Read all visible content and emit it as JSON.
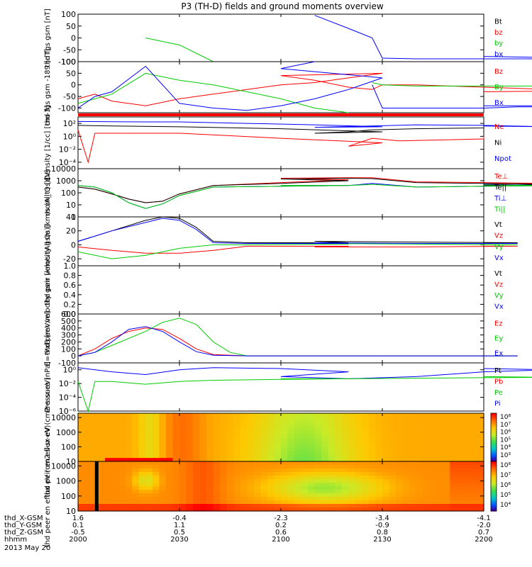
{
  "title": "P3 (TH-D) fields and ground moments overview",
  "colors": {
    "black": "#000000",
    "red": "#ff0000",
    "green": "#00cc00",
    "blue": "#0000ff",
    "lime": "#00ff00"
  },
  "x_axis": {
    "rows": [
      {
        "label": "thd_X-GSM",
        "values": [
          "1.6",
          "-0.4",
          "-2.3",
          "-3.4",
          "-4.1"
        ]
      },
      {
        "label": "thd_Y-GSM",
        "values": [
          "0.1",
          "1.1",
          "0.2",
          "-0.9",
          "-2.0"
        ]
      },
      {
        "label": "thd_Z-GSM",
        "values": [
          "-0.5",
          "0.5",
          "0.6",
          "0.8",
          "0.7"
        ]
      },
      {
        "label": "hhmm",
        "values": [
          "2000",
          "2030",
          "2100",
          "2130",
          "2200"
        ]
      }
    ],
    "date": "2013 May 20"
  },
  "chart_data": [
    {
      "type": "line",
      "ylabel": "thd fgs gsm [nT]",
      "ylim": [
        -100,
        100
      ],
      "y_ticks": [
        "100",
        "50",
        "0",
        "-50",
        "-100"
      ],
      "legend": [
        "Bt",
        "bz",
        "by",
        "bx"
      ],
      "series": [
        {
          "name": "by",
          "x": [
            2000,
            2010,
            2020,
            2030,
            2040,
            2050,
            2060
          ],
          "y": [
            null,
            null,
            0,
            -30,
            -100,
            null,
            null
          ]
        },
        {
          "name": "bx",
          "x": [
            2000,
            2010,
            2020,
            2030,
            2040,
            2050,
            2060,
            2070,
            2080,
            2090,
            2100,
            2110,
            2120,
            2127,
            2130,
            2140,
            2150,
            2160,
            2170,
            2180,
            2190,
            2200
          ],
          "y": [
            null,
            null,
            null,
            null,
            null,
            null,
            null,
            null,
            null,
            null,
            null,
            95,
            40,
            0,
            -85,
            -88,
            -88,
            -88,
            -88,
            -88,
            -85,
            -78
          ]
        }
      ]
    },
    {
      "type": "line",
      "ylabel": "thd fgs gsm -189 [nT]",
      "ylim": [
        -120,
        100
      ],
      "y_ticks": [
        "100",
        "50",
        "0",
        "-50",
        "-100"
      ],
      "legend": [
        "Bz",
        "By",
        "Bx"
      ],
      "series": [
        {
          "name": "Bz",
          "x": [
            2000,
            2005,
            2010,
            2020,
            2030,
            2040,
            2050,
            2060,
            2070,
            2080,
            2090,
            2100,
            2110,
            2120,
            2127,
            2130,
            2140,
            2150,
            2160,
            2170,
            2180,
            2190,
            2200
          ],
          "y": [
            -60,
            -40,
            -70,
            -90,
            -60,
            -40,
            -20,
            0,
            10,
            30,
            50,
            40,
            20,
            -10,
            -20,
            0,
            0,
            -5,
            -10,
            -15,
            -20,
            -25,
            -30
          ]
        },
        {
          "name": "By",
          "x": [
            2000,
            2005,
            2010,
            2020,
            2030,
            2040,
            2050,
            2060,
            2070,
            2080,
            2090,
            2100,
            2110,
            2120,
            2127,
            2130,
            2140,
            2150,
            2160,
            2170,
            2180,
            2190,
            2200
          ],
          "y": [
            -80,
            -60,
            -40,
            50,
            20,
            0,
            -30,
            -60,
            -100,
            -120,
            null,
            null,
            null,
            null,
            10,
            0,
            -5,
            -5,
            -5,
            -5,
            -5,
            -5,
            -5
          ]
        },
        {
          "name": "Bx",
          "x": [
            2000,
            2005,
            2010,
            2020,
            2030,
            2040,
            2050,
            2060,
            2070,
            2080,
            2090,
            2100,
            2110,
            2120,
            2127,
            2130,
            2140,
            2150,
            2160,
            2170,
            2180,
            2190,
            2200
          ],
          "y": [
            -100,
            -50,
            -30,
            80,
            -80,
            -100,
            -110,
            -90,
            -60,
            -20,
            30,
            70,
            100,
            null,
            0,
            -100,
            -100,
            -100,
            -100,
            -95,
            -95,
            -90,
            -90
          ]
        }
      ]
    },
    {
      "type": "line",
      "ylabel": "Density [1/cc] [cm-3]",
      "y_scale": "log",
      "ylim": [
        1e-05,
        1000
      ],
      "y_ticks": [
        "10²",
        "10⁰",
        "10⁻²",
        "10⁻⁴"
      ],
      "legend": [
        "Ne",
        "Ni",
        "Npot"
      ],
      "series": [
        {
          "name": "Ne",
          "x": [
            2000,
            2003,
            2005,
            2010,
            2030,
            2060,
            2090,
            2120,
            2127,
            2135,
            2160,
            2200
          ],
          "y": [
            10,
            0.0001,
            3,
            3,
            3,
            0.5,
            0.1,
            0.03,
            0.5,
            0.2,
            0.4,
            1
          ]
        },
        {
          "name": "Ni",
          "x": [
            2000,
            2010,
            2030,
            2060,
            2090,
            2110,
            2120,
            2127,
            2140,
            2160,
            2200
          ],
          "y": [
            50,
            40,
            30,
            15,
            5,
            3,
            5,
            10,
            15,
            20,
            25
          ]
        },
        {
          "name": "Npot",
          "x": [
            2000,
            2010,
            2020,
            2030,
            2050,
            2070,
            2090,
            2110,
            2127,
            2140,
            2160,
            2180,
            2200
          ],
          "y": [
            200,
            180,
            170,
            170,
            100,
            60,
            30,
            25,
            40,
            60,
            50,
            30,
            40
          ]
        }
      ]
    },
    {
      "type": "line",
      "ylabel": "mom_t3 [eV]",
      "y_scale": "log",
      "ylim": [
        1,
        10000
      ],
      "y_ticks": [
        "10000",
        "1000",
        "100",
        "10",
        "1"
      ],
      "legend": [
        "Te⊥",
        "Te||",
        "Ti⊥",
        "Ti||"
      ],
      "series": [
        {
          "name": "Te⊥",
          "x": [
            2000,
            2005,
            2010,
            2015,
            2020,
            2025,
            2030,
            2040,
            2060,
            2080,
            2100,
            2120,
            2127,
            2140,
            2160,
            2180,
            2200
          ],
          "y": [
            300,
            200,
            80,
            30,
            15,
            20,
            80,
            400,
            700,
            1200,
            1600,
            1800,
            1800,
            800,
            700,
            600,
            500
          ]
        },
        {
          "name": "Te||",
          "x": [
            2000,
            2005,
            2010,
            2015,
            2020,
            2025,
            2030,
            2040,
            2060,
            2080,
            2100,
            2120,
            2127,
            2140,
            2160,
            2180,
            2200
          ],
          "y": [
            300,
            200,
            80,
            30,
            15,
            20,
            80,
            400,
            600,
            1000,
            1400,
            1600,
            1500,
            700,
            600,
            500,
            400
          ]
        },
        {
          "name": "Ti⊥",
          "x": [
            2000,
            2005,
            2010,
            2015,
            2020,
            2025,
            2030,
            2040,
            2060,
            2080,
            2100,
            2120,
            2127,
            2140,
            2160,
            2180,
            2200
          ],
          "y": [
            400,
            300,
            100,
            15,
            5,
            12,
            60,
            300,
            350,
            400,
            400,
            400,
            600,
            300,
            350,
            400,
            500
          ]
        },
        {
          "name": "Ti||",
          "x": [
            2000,
            2005,
            2010,
            2015,
            2020,
            2025,
            2030,
            2040,
            2060,
            2080,
            2100,
            2120,
            2127,
            2140,
            2160,
            2180,
            2200
          ],
          "y": [
            400,
            300,
            100,
            15,
            5,
            12,
            60,
            300,
            350,
            400,
            400,
            400,
            500,
            300,
            350,
            400,
            450
          ]
        }
      ]
    },
    {
      "type": "line",
      "ylabel": "thd peir velocity gsm [km/s (All Qs)]",
      "ylim": [
        -30,
        40
      ],
      "y_ticks": [
        "40",
        "20",
        "0",
        "-20"
      ],
      "legend": [
        "Vt",
        "Vz",
        "Vy",
        "Vx"
      ],
      "series": [
        {
          "name": "Vt",
          "x": [
            2000,
            2010,
            2020,
            2025,
            2030,
            2035,
            2040,
            2050,
            2080,
            2110,
            2140,
            2170,
            2200
          ],
          "y": [
            5,
            20,
            35,
            40,
            38,
            25,
            5,
            3,
            3,
            5,
            4,
            3,
            3
          ]
        },
        {
          "name": "Vz",
          "x": [
            2000,
            2010,
            2020,
            2030,
            2040,
            2050,
            2080,
            2110,
            2140,
            2170,
            2200
          ],
          "y": [
            -3,
            -8,
            -12,
            -12,
            -8,
            -2,
            -2,
            -3,
            -3,
            -2,
            -2
          ]
        },
        {
          "name": "Vy",
          "x": [
            2000,
            2010,
            2020,
            2030,
            2040,
            2050,
            2080,
            2110,
            2140,
            2170,
            2200
          ],
          "y": [
            -10,
            -20,
            -15,
            -5,
            0,
            0,
            1,
            2,
            1,
            0,
            0
          ]
        },
        {
          "name": "Vx",
          "x": [
            2000,
            2010,
            2020,
            2025,
            2030,
            2035,
            2040,
            2050,
            2080,
            2110,
            2140,
            2170,
            2200
          ],
          "y": [
            5,
            20,
            32,
            38,
            35,
            22,
            3,
            2,
            2,
            3,
            2,
            2,
            2
          ]
        }
      ]
    },
    {
      "type": "line",
      "ylabel": "thd peer velocity gsm [km/s (All Qs)]",
      "ylim": [
        0,
        1
      ],
      "y_ticks": [
        "1.0",
        "0.8",
        "0.6",
        "0.4",
        "0.2",
        "0.0"
      ],
      "legend": [
        "Vt",
        "Vz",
        "Vy",
        "Vx"
      ],
      "series": []
    },
    {
      "type": "line",
      "ylabel": "E=-VxB [mV/m]",
      "ylim": [
        -100,
        600
      ],
      "y_ticks": [
        "600",
        "500",
        "400",
        "300",
        "200",
        "100",
        "0",
        "-100"
      ],
      "legend": [
        "Ez",
        "Ey",
        "Ex"
      ],
      "series": [
        {
          "name": "Ez",
          "x": [
            2000,
            2005,
            2010,
            2015,
            2020,
            2025,
            2030,
            2035,
            2040,
            2050,
            2080,
            2110,
            2140,
            2170,
            2200
          ],
          "y": [
            0,
            100,
            250,
            350,
            400,
            380,
            250,
            100,
            20,
            0,
            0,
            0,
            0,
            0,
            0
          ]
        },
        {
          "name": "Ey",
          "x": [
            2000,
            2005,
            2010,
            2020,
            2025,
            2030,
            2035,
            2040,
            2045,
            2050,
            2080,
            2110,
            2140,
            2170,
            2200
          ],
          "y": [
            0,
            50,
            150,
            350,
            480,
            540,
            450,
            200,
            50,
            0,
            0,
            0,
            0,
            0,
            0
          ]
        },
        {
          "name": "Ex",
          "x": [
            2000,
            2005,
            2010,
            2015,
            2020,
            2025,
            2030,
            2035,
            2040,
            2050,
            2080,
            2110,
            2140,
            2170,
            2200
          ],
          "y": [
            0,
            50,
            200,
            380,
            420,
            350,
            200,
            60,
            10,
            0,
            0,
            0,
            0,
            0,
            0
          ]
        }
      ]
    },
    {
      "type": "line",
      "ylabel": "Pressure [nPa]",
      "y_scale": "log",
      "ylim": [
        1e-06,
        10
      ],
      "y_ticks": [
        "10⁰",
        "10⁻²",
        "10⁻⁴",
        "10⁻⁶"
      ],
      "legend": [
        "Pt",
        "Pb",
        "Pe",
        "Pi"
      ],
      "series": [
        {
          "name": "Pi",
          "x": [
            2000,
            2010,
            2020,
            2030,
            2040,
            2060,
            2080,
            2100,
            2120,
            2140,
            2160,
            2180,
            2200
          ],
          "y": [
            2,
            0.5,
            0.2,
            1,
            2,
            1.5,
            0.5,
            0.1,
            0.05,
            0.1,
            0.5,
            1,
            1.5
          ]
        },
        {
          "name": "Pe",
          "x": [
            2000,
            2003,
            2005,
            2010,
            2020,
            2030,
            2040,
            2060,
            2080,
            2100,
            2120,
            2140,
            2160,
            2180,
            2200
          ],
          "y": [
            0.02,
            1e-06,
            0.02,
            0.02,
            0.008,
            0.02,
            0.03,
            0.04,
            0.05,
            0.05,
            0.05,
            0.06,
            0.07,
            0.08,
            0.1
          ]
        }
      ]
    },
    {
      "type": "heatmap",
      "ylabel": "thd peir en eflux eV (cm2-s-sr-eV)",
      "y_scale": "log",
      "ylim": [
        10,
        20000
      ],
      "y_ticks": [
        "10000",
        "1000",
        "100",
        "10"
      ],
      "colorbar_ticks": [
        "10⁸",
        "10⁷",
        "10⁶",
        "10⁵",
        "10⁴",
        "10³"
      ]
    },
    {
      "type": "heatmap",
      "ylabel": "thd peer en eflux eV (cm2-s-sr-eV)",
      "y_scale": "log",
      "ylim": [
        10,
        20000
      ],
      "y_ticks": [
        "10000",
        "1000",
        "100",
        "10"
      ],
      "colorbar_ticks": [
        "10⁸",
        "10⁷",
        "10⁶",
        "10⁵",
        "10⁴"
      ]
    }
  ]
}
